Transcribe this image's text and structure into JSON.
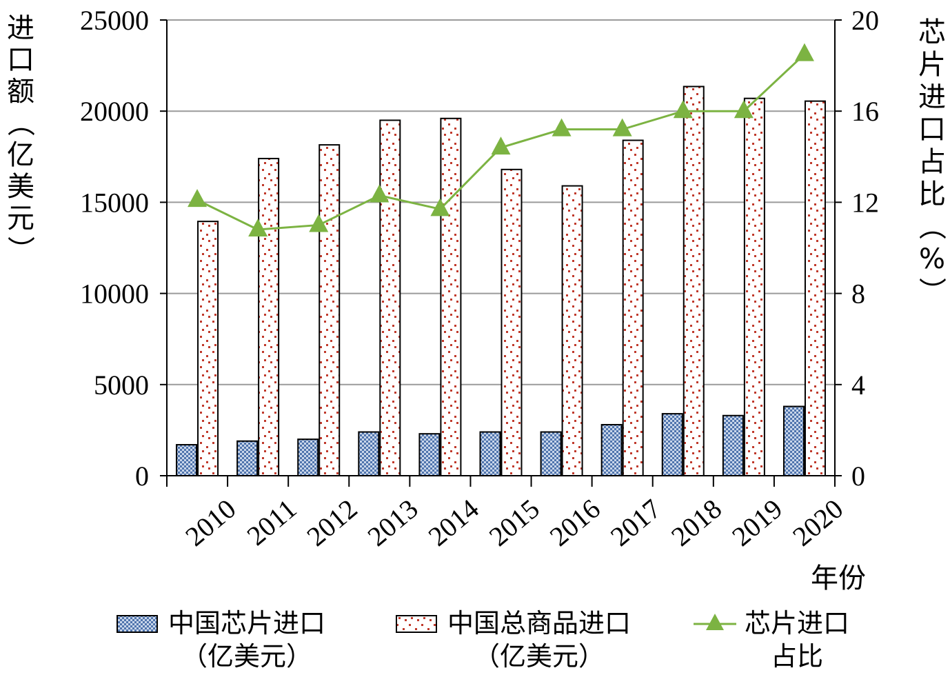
{
  "chart_data": {
    "type": "bar",
    "categories": [
      "2010",
      "2011",
      "2012",
      "2013",
      "2014",
      "2015",
      "2016",
      "2017",
      "2018",
      "2019",
      "2020"
    ],
    "x_axis_title": "年份",
    "y_left": {
      "title": "进口额（亿美元）",
      "range": [
        0,
        25000
      ],
      "ticks": [
        "0",
        "5000",
        "10000",
        "15000",
        "20000",
        "25000"
      ]
    },
    "y_right": {
      "title": "芯片进口占比（%）",
      "range": [
        0,
        20
      ],
      "ticks": [
        "0",
        "4",
        "8",
        "12",
        "16",
        "20"
      ]
    },
    "grid": true,
    "legend_position": "bottom",
    "series": [
      {
        "name": "中国芯片进口（亿美元）",
        "type": "bar",
        "axis": "left",
        "color": "#5b7fb5",
        "pattern": "blue-checker",
        "values": [
          1700,
          1900,
          2000,
          2400,
          2300,
          2400,
          2400,
          2800,
          3400,
          3300,
          3800
        ]
      },
      {
        "name": "中国总商品进口（亿美元）",
        "type": "bar",
        "axis": "left",
        "color": "#c0392b",
        "pattern": "red-dots",
        "values": [
          13950,
          17400,
          18150,
          19500,
          19600,
          16800,
          15900,
          18400,
          21350,
          20700,
          20550
        ]
      },
      {
        "name": "芯片进口占比",
        "type": "line",
        "axis": "right",
        "color": "#7cb342",
        "marker": "triangle",
        "values": [
          12.1,
          10.8,
          11.0,
          12.3,
          11.7,
          14.4,
          15.2,
          15.2,
          16.0,
          16.0,
          18.5
        ]
      }
    ]
  },
  "legend": {
    "items": [
      {
        "line1": "中国芯片进口",
        "line2": "（亿美元）"
      },
      {
        "line1": "中国总商品进口",
        "line2": "（亿美元）"
      },
      {
        "line1": "芯片进口",
        "line2": "占比"
      }
    ]
  }
}
